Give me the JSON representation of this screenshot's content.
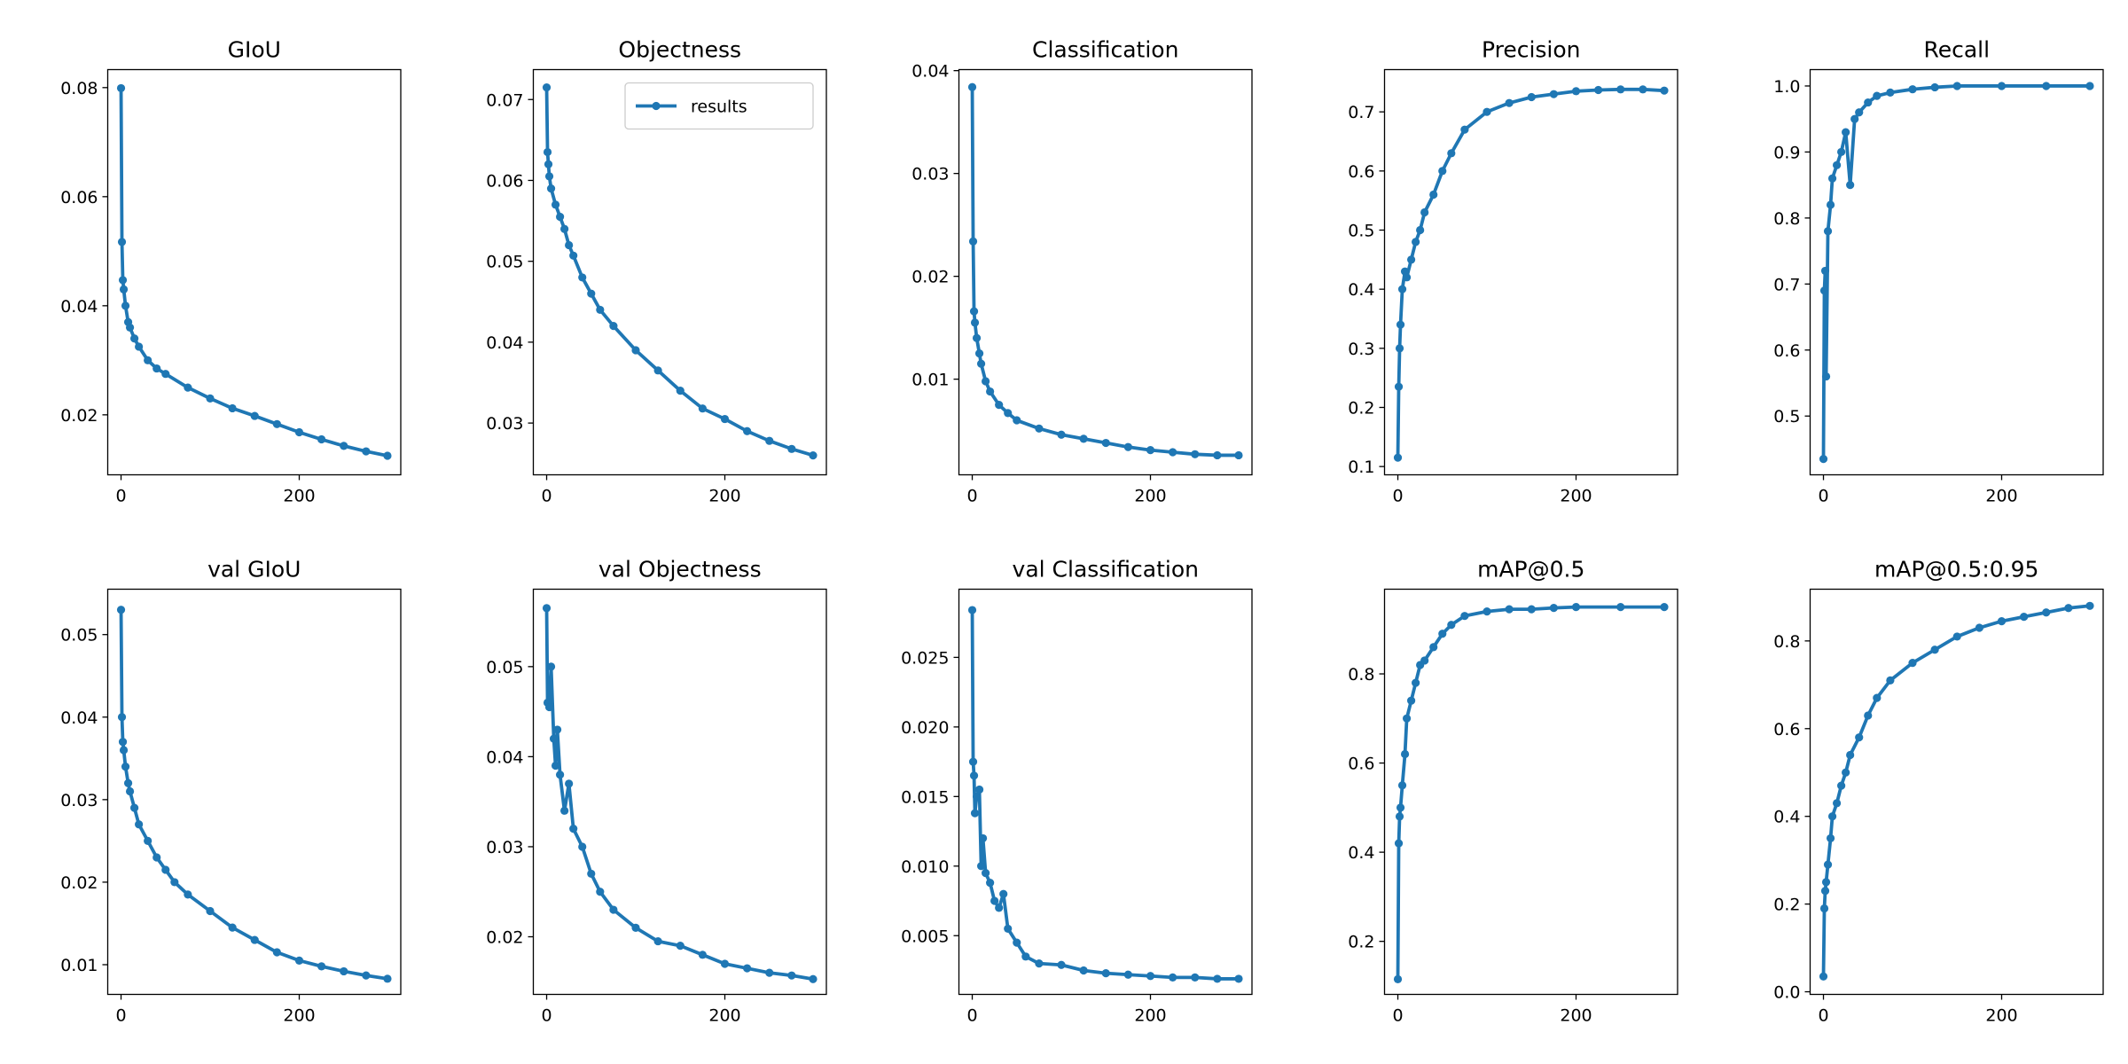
{
  "chart_data": [
    {
      "type": "line",
      "title": "GIoU",
      "x": [
        0,
        1,
        2,
        3,
        5,
        8,
        10,
        15,
        20,
        30,
        40,
        50,
        75,
        100,
        125,
        150,
        175,
        200,
        225,
        250,
        275,
        299
      ],
      "series": [
        {
          "color": "#1f77b4",
          "values": [
            0.0799,
            0.0517,
            0.0447,
            0.043,
            0.04,
            0.037,
            0.036,
            0.034,
            0.0325,
            0.03,
            0.0285,
            0.0275,
            0.025,
            0.023,
            0.0212,
            0.0198,
            0.0183,
            0.0168,
            0.0155,
            0.0143,
            0.0133,
            0.0125
          ]
        }
      ],
      "xlim": [
        -14.95,
        313.95
      ],
      "xticks": [
        0,
        200
      ],
      "ylim": [
        0.009,
        0.0833
      ],
      "yticks": [
        0.02,
        0.04,
        0.06,
        0.08
      ]
    },
    {
      "type": "line",
      "title": "Objectness",
      "x": [
        0,
        1,
        2,
        3,
        5,
        10,
        15,
        20,
        25,
        30,
        40,
        50,
        60,
        75,
        100,
        125,
        150,
        175,
        200,
        225,
        250,
        275,
        299
      ],
      "series": [
        {
          "name": "results",
          "color": "#1f77b4",
          "values": [
            0.0715,
            0.0635,
            0.062,
            0.0605,
            0.059,
            0.057,
            0.0555,
            0.054,
            0.052,
            0.0507,
            0.048,
            0.046,
            0.044,
            0.042,
            0.039,
            0.0365,
            0.034,
            0.0318,
            0.0305,
            0.029,
            0.0278,
            0.0268,
            0.026
          ]
        }
      ],
      "xlim": [
        -14.95,
        313.95
      ],
      "xticks": [
        0,
        200
      ],
      "ylim": [
        0.0236,
        0.0737
      ],
      "yticks": [
        0.03,
        0.04,
        0.05,
        0.06,
        0.07
      ],
      "legend": "upper right"
    },
    {
      "type": "line",
      "title": "Classification",
      "x": [
        0,
        1,
        2,
        3,
        5,
        8,
        10,
        15,
        20,
        30,
        40,
        50,
        75,
        100,
        125,
        150,
        175,
        200,
        225,
        250,
        275,
        299
      ],
      "series": [
        {
          "color": "#1f77b4",
          "values": [
            0.0384,
            0.0234,
            0.0166,
            0.0155,
            0.014,
            0.0125,
            0.0115,
            0.0098,
            0.0088,
            0.0075,
            0.0067,
            0.006,
            0.0052,
            0.0046,
            0.0042,
            0.0038,
            0.0034,
            0.0031,
            0.0029,
            0.0027,
            0.0026,
            0.0026
          ]
        }
      ],
      "xlim": [
        -14.95,
        313.95
      ],
      "xticks": [
        0,
        200
      ],
      "ylim": [
        0.0007,
        0.0401
      ],
      "yticks": [
        0.01,
        0.02,
        0.03,
        0.04
      ]
    },
    {
      "type": "line",
      "title": "Precision",
      "x": [
        0,
        1,
        2,
        3,
        5,
        8,
        10,
        15,
        20,
        25,
        30,
        40,
        50,
        60,
        75,
        100,
        125,
        150,
        175,
        200,
        225,
        250,
        275,
        299
      ],
      "series": [
        {
          "color": "#1f77b4",
          "values": [
            0.115,
            0.235,
            0.3,
            0.34,
            0.4,
            0.43,
            0.42,
            0.45,
            0.48,
            0.5,
            0.53,
            0.56,
            0.6,
            0.63,
            0.67,
            0.7,
            0.715,
            0.725,
            0.73,
            0.735,
            0.737,
            0.738,
            0.738,
            0.736
          ]
        }
      ],
      "xlim": [
        -14.95,
        313.95
      ],
      "xticks": [
        0,
        200
      ],
      "ylim": [
        0.086,
        0.7715
      ],
      "yticks": [
        0.1,
        0.2,
        0.3,
        0.4,
        0.5,
        0.6,
        0.7
      ]
    },
    {
      "type": "line",
      "title": "Recall",
      "x": [
        0,
        1,
        2,
        3,
        5,
        8,
        10,
        15,
        20,
        25,
        30,
        35,
        40,
        50,
        60,
        75,
        100,
        125,
        150,
        200,
        250,
        299
      ],
      "series": [
        {
          "color": "#1f77b4",
          "values": [
            0.435,
            0.69,
            0.72,
            0.56,
            0.78,
            0.82,
            0.86,
            0.88,
            0.9,
            0.93,
            0.85,
            0.95,
            0.96,
            0.975,
            0.985,
            0.99,
            0.995,
            0.998,
            1.0,
            1.0,
            1.0,
            1.0
          ]
        }
      ],
      "xlim": [
        -14.95,
        313.95
      ],
      "xticks": [
        0,
        200
      ],
      "ylim": [
        0.411,
        1.0248
      ],
      "yticks": [
        0.5,
        0.6,
        0.7,
        0.8,
        0.9,
        {
          "value": 1.0,
          "label": "1.0"
        }
      ]
    },
    {
      "type": "line",
      "title": "val GIoU",
      "x": [
        0,
        1,
        2,
        3,
        5,
        8,
        10,
        15,
        20,
        30,
        40,
        50,
        60,
        75,
        100,
        125,
        150,
        175,
        200,
        225,
        250,
        275,
        299
      ],
      "series": [
        {
          "color": "#1f77b4",
          "values": [
            0.053,
            0.04,
            0.037,
            0.036,
            0.034,
            0.032,
            0.031,
            0.029,
            0.027,
            0.025,
            0.023,
            0.0215,
            0.02,
            0.0185,
            0.0165,
            0.0145,
            0.013,
            0.0115,
            0.0105,
            0.0098,
            0.0092,
            0.0087,
            0.0083
          ]
        }
      ],
      "xlim": [
        -14.95,
        313.95
      ],
      "xticks": [
        0,
        200
      ],
      "ylim": [
        0.0064,
        0.0555
      ],
      "yticks": [
        0.01,
        0.02,
        0.03,
        0.04,
        0.05
      ]
    },
    {
      "type": "line",
      "title": "val Objectness",
      "x": [
        0,
        1,
        3,
        5,
        8,
        10,
        12,
        15,
        20,
        25,
        30,
        40,
        50,
        60,
        75,
        100,
        125,
        150,
        175,
        200,
        225,
        250,
        275,
        299
      ],
      "series": [
        {
          "color": "#1f77b4",
          "values": [
            0.0565,
            0.046,
            0.0455,
            0.05,
            0.042,
            0.039,
            0.043,
            0.038,
            0.034,
            0.037,
            0.032,
            0.03,
            0.027,
            0.025,
            0.023,
            0.021,
            0.0195,
            0.019,
            0.018,
            0.017,
            0.0165,
            0.016,
            0.0157,
            0.0153
          ]
        }
      ],
      "xlim": [
        -14.95,
        313.95
      ],
      "xticks": [
        0,
        200
      ],
      "ylim": [
        0.0136,
        0.0586
      ],
      "yticks": [
        0.02,
        0.03,
        0.04,
        0.05
      ]
    },
    {
      "type": "line",
      "title": "val Classification",
      "x": [
        0,
        1,
        2,
        3,
        5,
        8,
        10,
        12,
        15,
        20,
        25,
        30,
        35,
        40,
        50,
        60,
        75,
        100,
        125,
        150,
        175,
        200,
        225,
        250,
        275,
        299
      ],
      "series": [
        {
          "color": "#1f77b4",
          "values": [
            0.0284,
            0.0175,
            0.0165,
            0.0138,
            0.015,
            0.0155,
            0.01,
            0.012,
            0.0095,
            0.0088,
            0.0075,
            0.007,
            0.008,
            0.0055,
            0.0045,
            0.0035,
            0.003,
            0.0029,
            0.0025,
            0.0023,
            0.0022,
            0.0021,
            0.002,
            0.002,
            0.0019,
            0.0019
          ]
        }
      ],
      "xlim": [
        -14.95,
        313.95
      ],
      "xticks": [
        0,
        200
      ],
      "ylim": [
        0.00078,
        0.0299
      ],
      "yticks": [
        0.005,
        {
          "value": 0.01,
          "label": "0.010"
        },
        {
          "value": 0.015,
          "label": "0.015"
        },
        {
          "value": 0.02,
          "label": "0.020"
        },
        {
          "value": 0.025,
          "label": "0.025"
        }
      ]
    },
    {
      "type": "line",
      "title": "mAP@0.5",
      "x": [
        0,
        1,
        2,
        3,
        5,
        8,
        10,
        15,
        20,
        25,
        30,
        40,
        50,
        60,
        75,
        100,
        125,
        150,
        175,
        200,
        250,
        299
      ],
      "series": [
        {
          "color": "#1f77b4",
          "values": [
            0.115,
            0.42,
            0.48,
            0.5,
            0.55,
            0.62,
            0.7,
            0.74,
            0.78,
            0.82,
            0.83,
            0.86,
            0.89,
            0.91,
            0.93,
            0.94,
            0.945,
            0.945,
            0.948,
            0.95,
            0.95,
            0.95
          ]
        }
      ],
      "xlim": [
        -14.95,
        313.95
      ],
      "xticks": [
        0,
        200
      ],
      "ylim": [
        0.081,
        0.99
      ],
      "yticks": [
        0.2,
        0.4,
        0.6,
        0.8
      ]
    },
    {
      "type": "line",
      "title": "mAP@0.5:0.95",
      "x": [
        0,
        1,
        2,
        3,
        5,
        8,
        10,
        15,
        20,
        25,
        30,
        40,
        50,
        60,
        75,
        100,
        125,
        150,
        175,
        200,
        225,
        250,
        275,
        299
      ],
      "series": [
        {
          "color": "#1f77b4",
          "values": [
            0.035,
            0.19,
            0.23,
            0.25,
            0.29,
            0.35,
            0.4,
            0.43,
            0.47,
            0.5,
            0.54,
            0.58,
            0.63,
            0.67,
            0.71,
            0.75,
            0.78,
            0.81,
            0.83,
            0.845,
            0.855,
            0.865,
            0.875,
            0.88
          ]
        }
      ],
      "xlim": [
        -14.95,
        313.95
      ],
      "xticks": [
        0,
        200
      ],
      "ylim": [
        -0.006,
        0.918
      ],
      "yticks": [
        {
          "value": 0,
          "label": "0.0"
        },
        0.2,
        0.4,
        0.6,
        0.8
      ]
    }
  ]
}
